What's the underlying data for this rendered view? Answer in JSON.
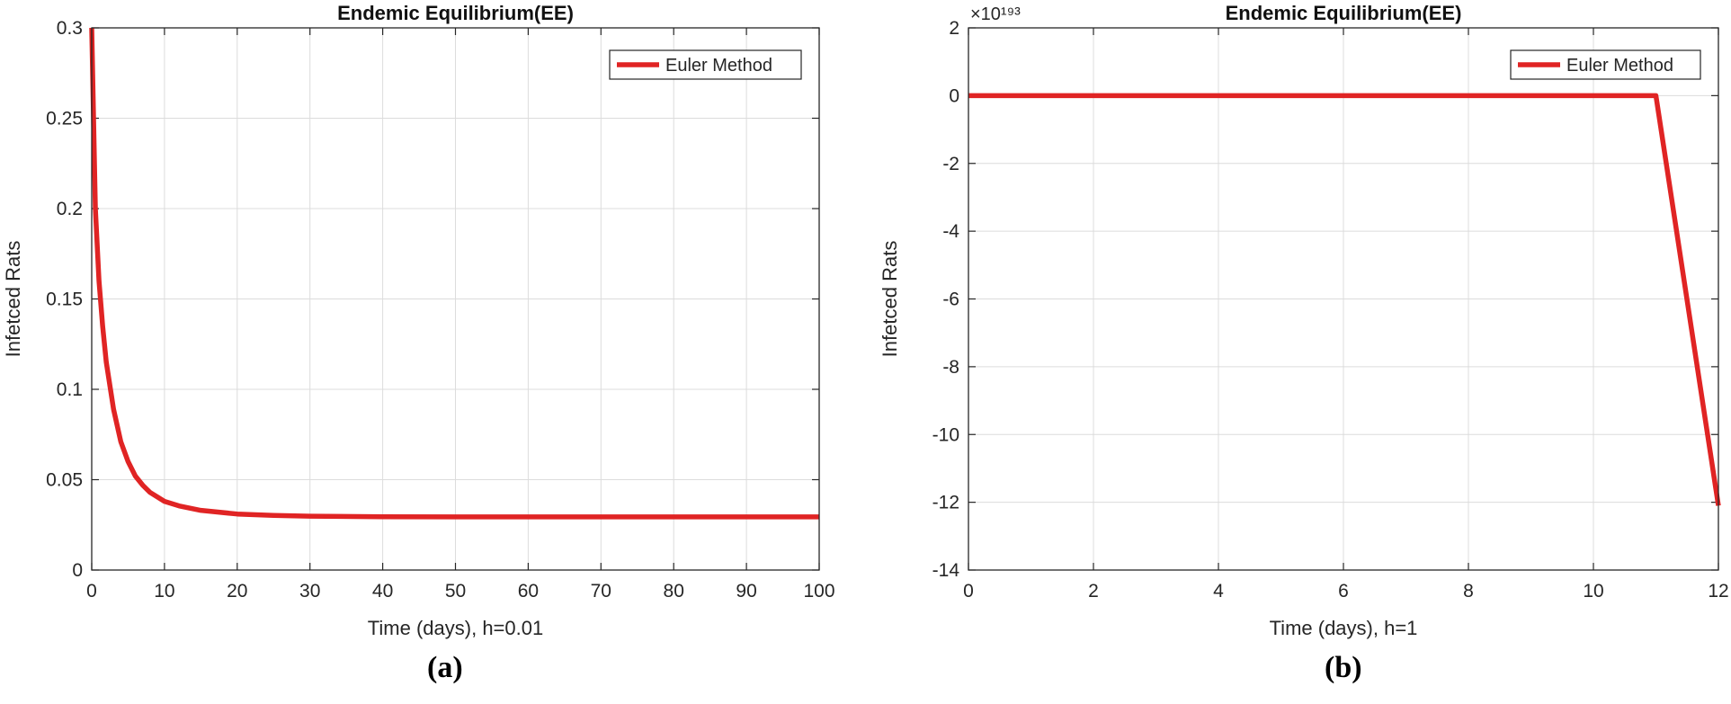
{
  "colors": {
    "line": "#e02424",
    "grid": "#dcdcdc",
    "axis": "#262626",
    "text": "#262626"
  },
  "chart_data": [
    {
      "type": "line",
      "title": "Endemic Equilibrium(EE)",
      "xlabel": "Time (days), h=0.01",
      "ylabel": "Infetced Rats",
      "xlim": [
        0,
        100
      ],
      "ylim": [
        0,
        0.3
      ],
      "xticks": [
        0,
        10,
        20,
        30,
        40,
        50,
        60,
        70,
        80,
        90,
        100
      ],
      "xtick_labels": [
        "0",
        "10",
        "20",
        "30",
        "40",
        "50",
        "60",
        "70",
        "80",
        "90",
        "100"
      ],
      "yticks": [
        0,
        0.05,
        0.1,
        0.15,
        0.2,
        0.25,
        0.3
      ],
      "ytick_labels": [
        "0",
        "0.05",
        "0.1",
        "0.15",
        "0.2",
        "0.25",
        "0.3"
      ],
      "exponent_label": "",
      "grid": true,
      "legend_position": "top-right",
      "caption": "(a)",
      "series": [
        {
          "name": "Euler Method",
          "x": [
            0,
            0.5,
            1,
            1.5,
            2,
            3,
            4,
            5,
            6,
            7,
            8,
            10,
            12,
            15,
            20,
            25,
            30,
            40,
            50,
            60,
            70,
            80,
            90,
            100
          ],
          "y": [
            0.3,
            0.2,
            0.16,
            0.135,
            0.115,
            0.089,
            0.071,
            0.06,
            0.052,
            0.047,
            0.043,
            0.038,
            0.0355,
            0.033,
            0.031,
            0.0302,
            0.0298,
            0.0295,
            0.0294,
            0.0294,
            0.0294,
            0.0294,
            0.0294,
            0.0294
          ]
        }
      ]
    },
    {
      "type": "line",
      "title": "Endemic Equilibrium(EE)",
      "xlabel": "Time (days), h=1",
      "ylabel": "Infetced Rats",
      "xlim": [
        0,
        12
      ],
      "ylim": [
        -14,
        2
      ],
      "xticks": [
        0,
        2,
        4,
        6,
        8,
        10,
        12
      ],
      "xtick_labels": [
        "0",
        "2",
        "4",
        "6",
        "8",
        "10",
        "12"
      ],
      "yticks": [
        -14,
        -12,
        -10,
        -8,
        -6,
        -4,
        -2,
        0,
        2
      ],
      "ytick_labels": [
        "-14",
        "-12",
        "-10",
        "-8",
        "-6",
        "-4",
        "-2",
        "0",
        "2"
      ],
      "exponent_label": "×10¹⁹³",
      "grid": true,
      "legend_position": "top-right",
      "caption": "(b)",
      "series": [
        {
          "name": "Euler Method",
          "x": [
            0,
            1,
            2,
            3,
            4,
            5,
            6,
            7,
            8,
            9,
            10,
            11,
            12
          ],
          "y": [
            0,
            0,
            0,
            0,
            0,
            0,
            0,
            0,
            0,
            0,
            0,
            0,
            -12.1
          ]
        }
      ]
    }
  ]
}
